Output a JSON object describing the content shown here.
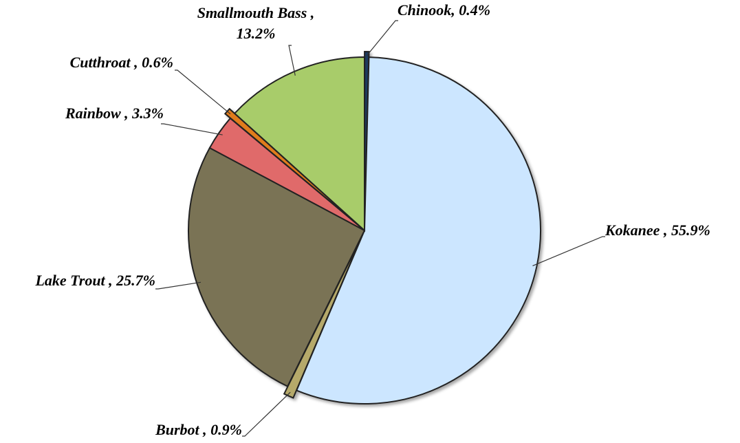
{
  "chart_data": {
    "type": "pie",
    "categories": [
      "Chinook, 0.4%",
      "Kokanee , 55.9%",
      "Burbot , 0.9%",
      "Lake Trout , 25.7%",
      "Rainbow , 3.3%",
      "Cutthroat , 0.6%",
      "Smallmouth Bass ,\n13.2%"
    ],
    "values": [
      0.4,
      55.9,
      0.9,
      25.7,
      3.3,
      0.6,
      13.2
    ],
    "colors": [
      "#1f3a5f",
      "#cce6ff",
      "#b5a96a",
      "#7a7355",
      "#e06a6a",
      "#e07b1a",
      "#a8cc6a"
    ]
  }
}
